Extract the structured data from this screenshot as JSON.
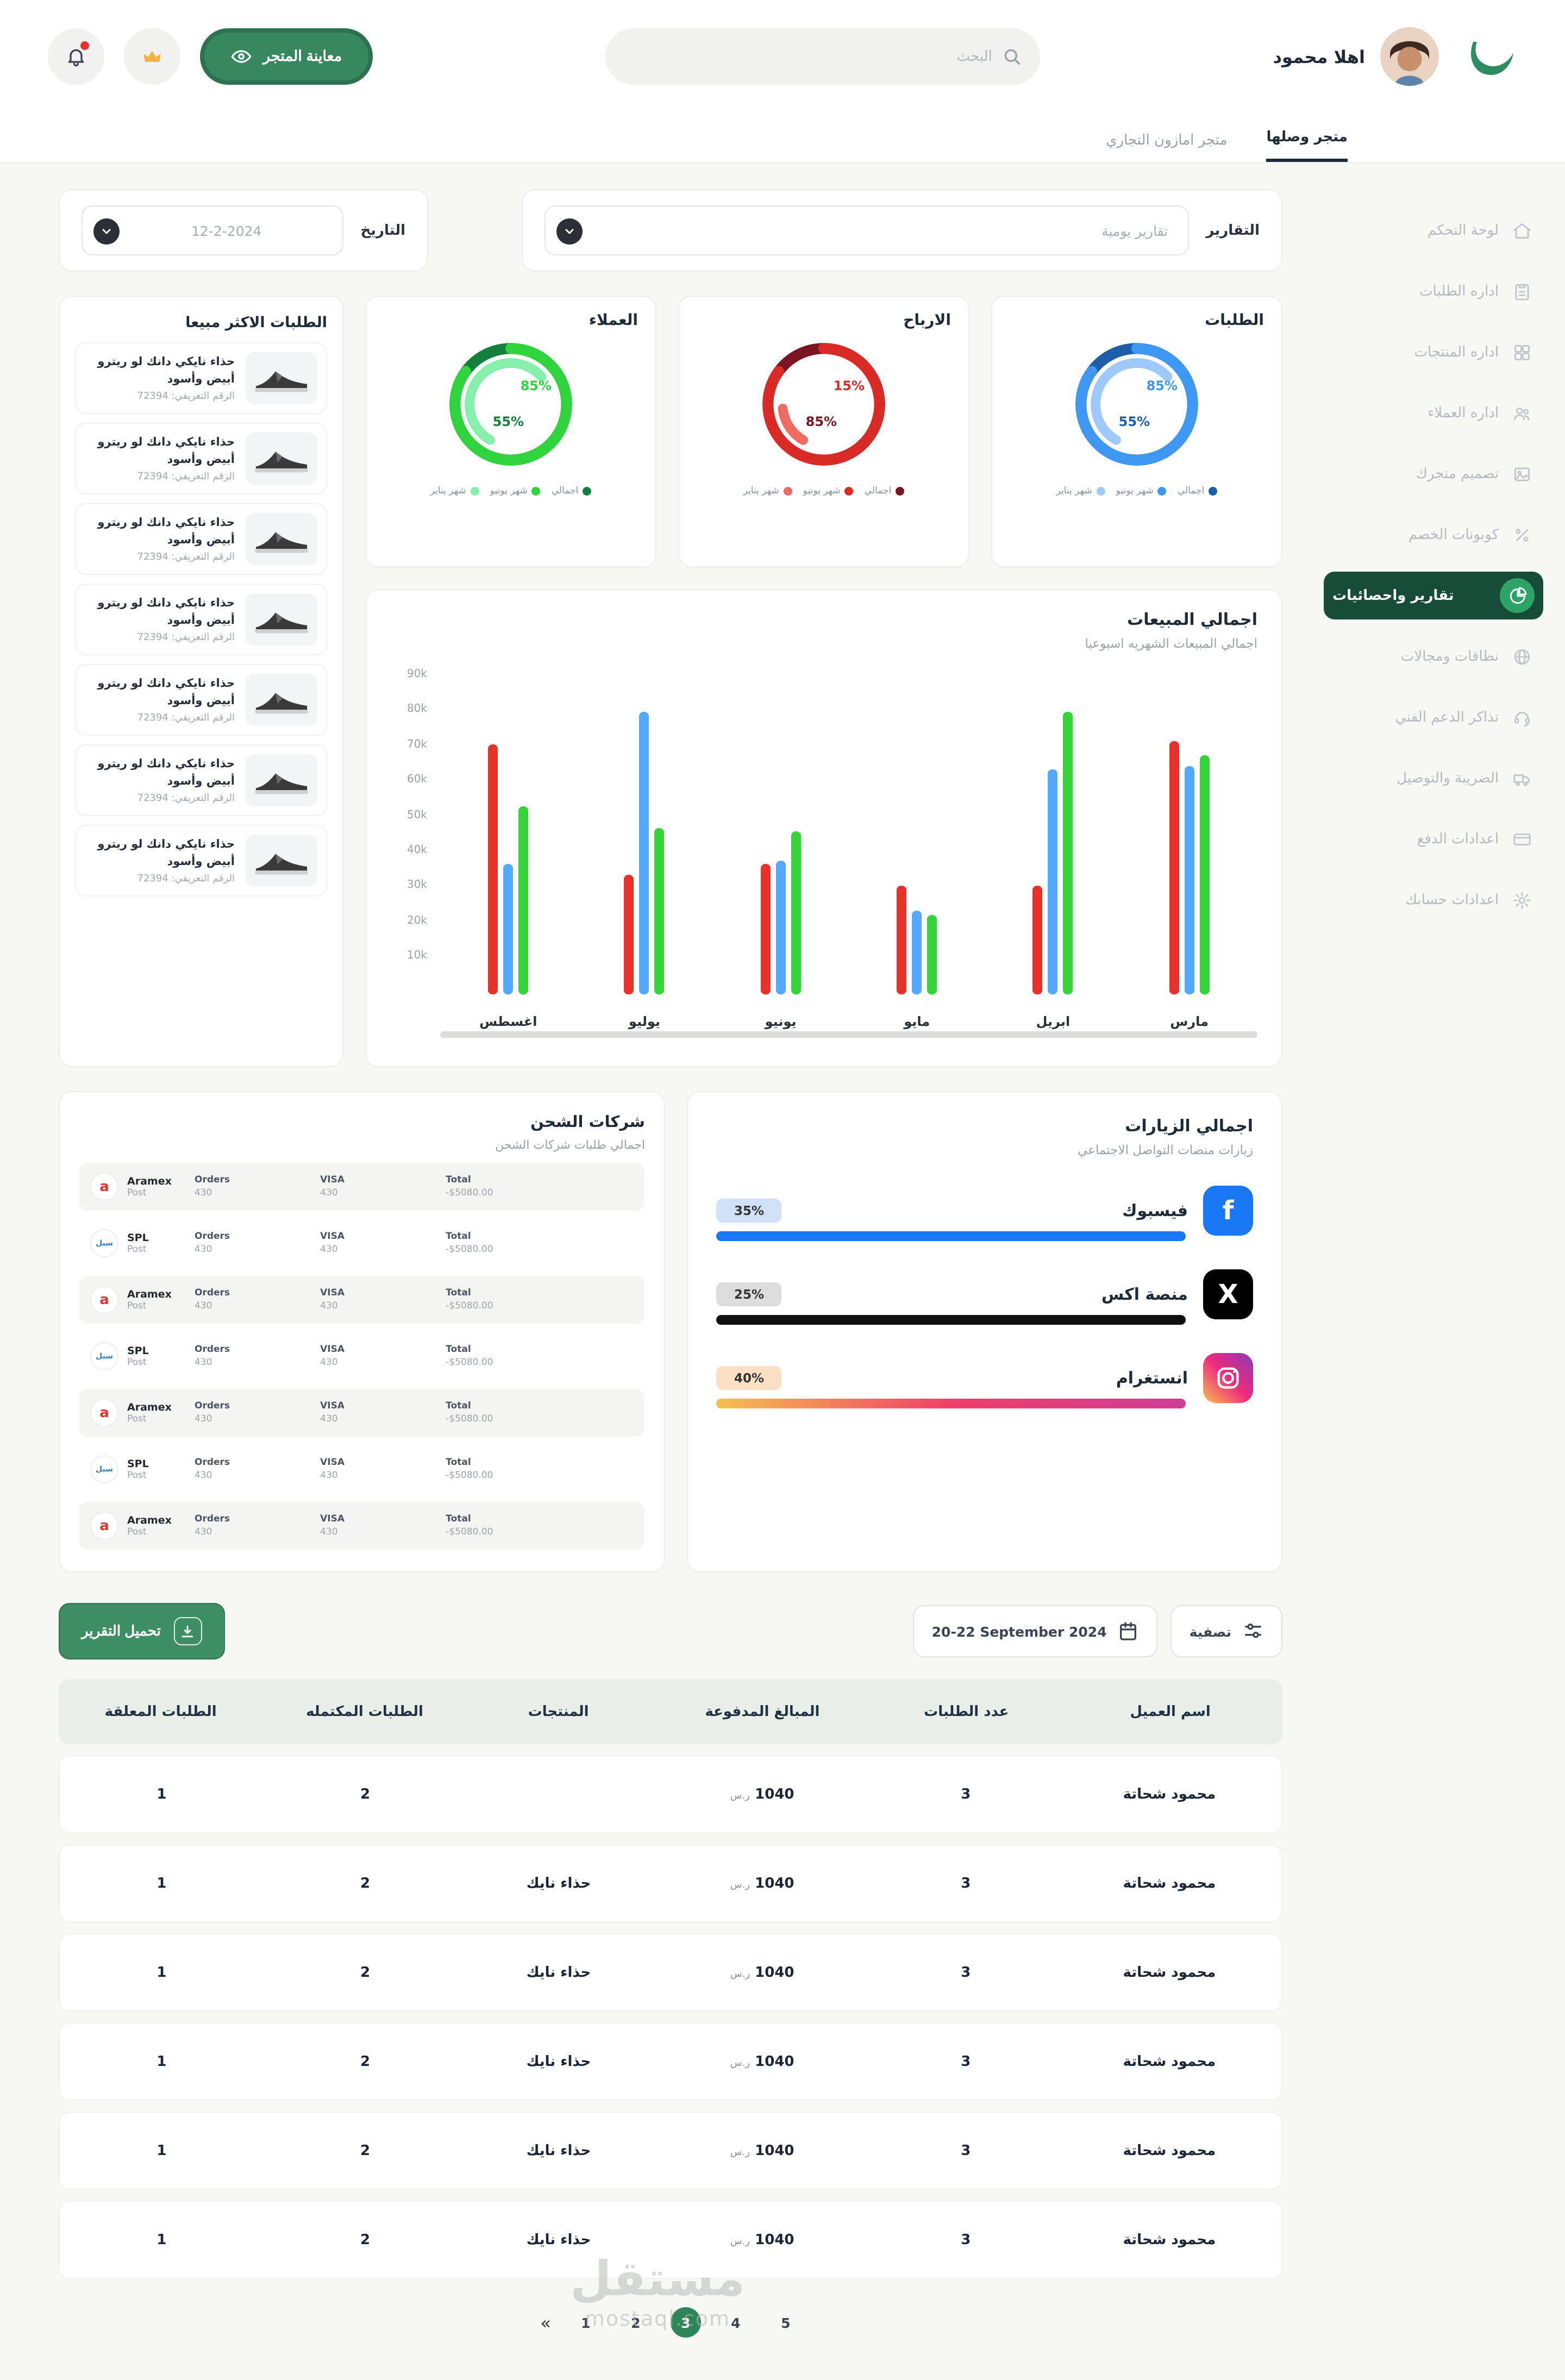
{
  "header": {
    "greeting": "اهلا محمود",
    "search_placeholder": "البحث",
    "preview_button": "معاينة المتجر"
  },
  "tabs": [
    {
      "label": "متجر وصلها",
      "active": true
    },
    {
      "label": "متجر امازون التجاري",
      "active": false
    }
  ],
  "sidebar": {
    "items": [
      {
        "label": "لوحة التحكم"
      },
      {
        "label": "اداره الطلبات"
      },
      {
        "label": "اداره المنتجات"
      },
      {
        "label": "اداره العملاء"
      },
      {
        "label": "تصميم متجرك"
      },
      {
        "label": "كوبونات الخصم"
      },
      {
        "label": "تقارير واحصائيات",
        "active": true
      },
      {
        "label": "نطاقات ومجالات"
      },
      {
        "label": "تذاكر الدعم الفني"
      },
      {
        "label": "الضريبة والتوصيل"
      },
      {
        "label": "اعدادات الدفع"
      },
      {
        "label": "اعدادات حسابك"
      }
    ]
  },
  "filters": {
    "reports_label": "التقارير",
    "reports_value": "تقارير يومية",
    "date_label": "التاريخ",
    "date_value": "12-2-2024"
  },
  "chart_data": [
    {
      "type": "pie",
      "variant": "donut",
      "title": "الطلبات",
      "values": {
        "outer": 85,
        "inner": 55
      },
      "labels": {
        "top": "85%",
        "bottom": "55%"
      },
      "colors": {
        "dark": "#1c5ea9",
        "mid": "#3e97f3",
        "light": "#9dc9ff"
      },
      "legend": [
        {
          "label": "اجمالي",
          "color": "#1c5ea9"
        },
        {
          "label": "شهر يونيو",
          "color": "#3e97f3"
        },
        {
          "label": "شهر يناير",
          "color": "#9dc9ff"
        }
      ]
    },
    {
      "type": "pie",
      "variant": "donut",
      "title": "الارباح",
      "values": {
        "outer": 85,
        "inner": 15
      },
      "labels": {
        "top": "15%",
        "bottom": "85%"
      },
      "colors": {
        "dark": "#7c1423",
        "mid": "#d92a25",
        "light": "#ef6a5f"
      },
      "legend": [
        {
          "label": "اجمالي",
          "color": "#7c1423"
        },
        {
          "label": "شهر يونيو",
          "color": "#d92a25"
        },
        {
          "label": "شهر يناير",
          "color": "#ef6a5f"
        }
      ]
    },
    {
      "type": "pie",
      "variant": "donut",
      "title": "العملاء",
      "values": {
        "outer": 85,
        "inner": 55
      },
      "labels": {
        "top": "85%",
        "bottom": "55%"
      },
      "colors": {
        "dark": "#15803d",
        "mid": "#2fd43c",
        "light": "#86efac"
      },
      "legend": [
        {
          "label": "اجمالي",
          "color": "#15803d"
        },
        {
          "label": "شهر يونيو",
          "color": "#2fd43c"
        },
        {
          "label": "شهر يناير",
          "color": "#86efac"
        }
      ]
    },
    {
      "type": "bar",
      "title": "اجمالي المبيعات",
      "subtitle": "اجمالي المبيعات الشهريه اسبوعيا",
      "categories": [
        "اغسطس",
        "يوليو",
        "يونيو",
        "مايو",
        "ابريل",
        "مارس"
      ],
      "series": [
        {
          "name": "series-red",
          "color": "#e8312a",
          "values": [
            69,
            33,
            36,
            30,
            30,
            70
          ]
        },
        {
          "name": "series-blue",
          "color": "#55a8ff",
          "values": [
            36,
            78,
            37,
            23,
            62,
            63
          ]
        },
        {
          "name": "series-green",
          "color": "#35d43a",
          "values": [
            52,
            46,
            45,
            22,
            78,
            66
          ]
        }
      ],
      "unit": "k",
      "ymax": 90,
      "yticks": [
        "90k",
        "80k",
        "70k",
        "60k",
        "50k",
        "40k",
        "30k",
        "20k",
        "10k"
      ],
      "grid": false,
      "legend_position": "none"
    },
    {
      "type": "bar",
      "variant": "progress",
      "title": "اجمالي الزيارات",
      "subtitle": "زيارات منصات التواصل الاجتماعي",
      "items": [
        {
          "label": "فيسبوك",
          "percent": "35%",
          "badge_bg": "#cfe0f7",
          "bar": "#1877f2"
        },
        {
          "label": "منصة اكس",
          "percent": "25%",
          "badge_bg": "#dcdcdc",
          "bar": "#111111"
        },
        {
          "label": "انستغرام",
          "percent": "40%",
          "badge_bg": "#fbe0c3",
          "bar": "linear-gradient(90deg,#f6c050,#ef3e68,#cf3d96)"
        }
      ]
    }
  ],
  "top_products": {
    "title": "الطلبات الاكثر مبيعا",
    "items": [
      {
        "name": "حذاء نايكي دانك لو ريترو",
        "variant": "أبيض وأسود",
        "sku": "الرقم التعريفي: 72394"
      },
      {
        "name": "حذاء نايكي دانك لو ريترو",
        "variant": "أبيض وأسود",
        "sku": "الرقم التعريفي: 72394"
      },
      {
        "name": "حذاء نايكي دانك لو ريترو",
        "variant": "أبيض وأسود",
        "sku": "الرقم التعريفي: 72394"
      },
      {
        "name": "حذاء نايكي دانك لو ريترو",
        "variant": "أبيض وأسود",
        "sku": "الرقم التعريفي: 72394"
      },
      {
        "name": "حذاء نايكي دانك لو ريترو",
        "variant": "أبيض وأسود",
        "sku": "الرقم التعريفي: 72394"
      },
      {
        "name": "حذاء نايكي دانك لو ريترو",
        "variant": "أبيض وأسود",
        "sku": "الرقم التعريفي: 72394"
      },
      {
        "name": "حذاء نايكي دانك لو ريترو",
        "variant": "أبيض وأسود",
        "sku": "الرقم التعريفي: 72394"
      }
    ]
  },
  "shipping": {
    "title": "شركات الشحن",
    "subtitle": "اجمالي طلبات شركات الشحن",
    "columns": {
      "orders": "Orders",
      "visa": "VISA",
      "total": "Total"
    },
    "rows": [
      {
        "company": "Aramex",
        "sub": "Post",
        "logo": "a",
        "logo_color": "#e3342f",
        "orders": "430",
        "visa": "430",
        "total": "-$5080.00"
      },
      {
        "company": "SPL",
        "sub": "Post",
        "logo": "سبل",
        "logo_color": "#2f7fd0",
        "orders": "430",
        "visa": "430",
        "total": "-$5080.00"
      },
      {
        "company": "Aramex",
        "sub": "Post",
        "logo": "a",
        "logo_color": "#e3342f",
        "orders": "430",
        "visa": "430",
        "total": "-$5080.00"
      },
      {
        "company": "SPL",
        "sub": "Post",
        "logo": "سبل",
        "logo_color": "#2f7fd0",
        "orders": "430",
        "visa": "430",
        "total": "-$5080.00"
      },
      {
        "company": "Aramex",
        "sub": "Post",
        "logo": "a",
        "logo_color": "#e3342f",
        "orders": "430",
        "visa": "430",
        "total": "-$5080.00"
      },
      {
        "company": "SPL",
        "sub": "Post",
        "logo": "سبل",
        "logo_color": "#2f7fd0",
        "orders": "430",
        "visa": "430",
        "total": "-$5080.00"
      },
      {
        "company": "Aramex",
        "sub": "Post",
        "logo": "a",
        "logo_color": "#e3342f",
        "orders": "430",
        "visa": "430",
        "total": "-$5080.00"
      }
    ]
  },
  "report_bar": {
    "download": "تحميل التقرير",
    "date_range": "20-22 September 2024",
    "filter": "تصفية"
  },
  "table": {
    "headers": [
      "اسم العميل",
      "عدد الطلبات",
      "المبالغ المدفوعة",
      "المنتجات",
      "الطلبات المكتمله",
      "الطلبات المعلقة"
    ],
    "currency": "ر.س",
    "rows": [
      {
        "customer": "محمود شحاتة",
        "orders": "3",
        "paid": "1040",
        "product": "",
        "completed": "2",
        "pending": "1"
      },
      {
        "customer": "محمود شحاتة",
        "orders": "3",
        "paid": "1040",
        "product": "حذاء نايك",
        "completed": "2",
        "pending": "1"
      },
      {
        "customer": "محمود شحاتة",
        "orders": "3",
        "paid": "1040",
        "product": "حذاء نايك",
        "completed": "2",
        "pending": "1"
      },
      {
        "customer": "محمود شحاتة",
        "orders": "3",
        "paid": "1040",
        "product": "حذاء نايك",
        "completed": "2",
        "pending": "1"
      },
      {
        "customer": "محمود شحاتة",
        "orders": "3",
        "paid": "1040",
        "product": "حذاء نايك",
        "completed": "2",
        "pending": "1"
      },
      {
        "customer": "محمود شحاتة",
        "orders": "3",
        "paid": "1040",
        "product": "حذاء نايك",
        "completed": "2",
        "pending": "1"
      }
    ]
  },
  "pagination": {
    "prev": "«",
    "pages": [
      "1",
      "2",
      "3",
      "4",
      "5"
    ],
    "active": "3"
  },
  "watermark": {
    "line1": "مستقل",
    "line2": "mostaql.com"
  }
}
